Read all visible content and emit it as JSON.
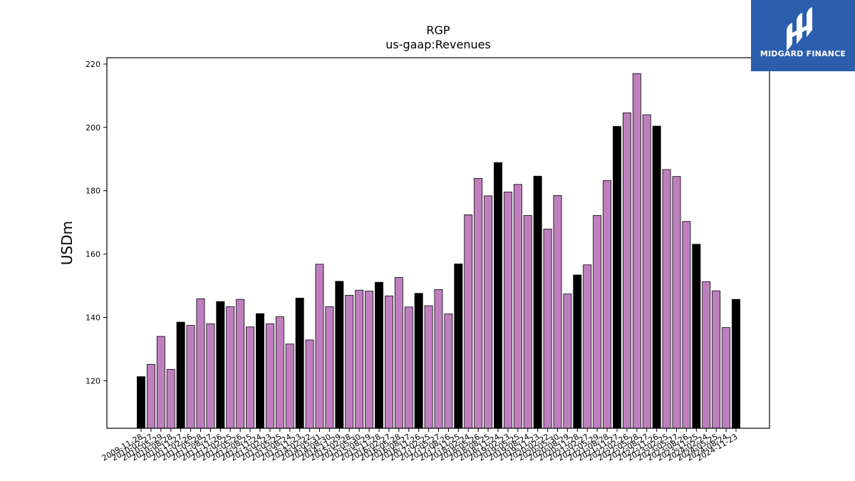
{
  "logo": {
    "text": "MIDGARD FINANCE"
  },
  "chart_data": {
    "type": "bar",
    "title": "RGP",
    "subtitle": "us-gaap:Revenues",
    "xlabel": "",
    "ylabel": "USDm",
    "ylim": [
      105,
      222
    ],
    "yticks": [
      120,
      140,
      160,
      180,
      200,
      220
    ],
    "grid": false,
    "legend": "none",
    "colors": {
      "annual": "#000000",
      "quarterly": "#bf7fbf"
    },
    "categories": [
      "2009-11-28",
      "2010-02-27",
      "2010-05-29",
      "2010-08-28",
      "2010-11-27",
      "2011-02-26",
      "2011-05-28",
      "2011-08-27",
      "2011-11-26",
      "2012-02-25",
      "2012-05-26",
      "2012-08-25",
      "2012-11-24",
      "2013-02-23",
      "2013-05-25",
      "2013-08-24",
      "2013-11-23",
      "2014-02-22",
      "2014-05-31",
      "2014-08-30",
      "2014-11-29",
      "2015-02-28",
      "2015-05-30",
      "2015-08-29",
      "2015-11-28",
      "2016-02-27",
      "2016-05-28",
      "2016-08-27",
      "2016-11-26",
      "2017-02-25",
      "2017-05-27",
      "2017-08-26",
      "2017-11-25",
      "2018-02-24",
      "2018-05-26",
      "2018-08-25",
      "2018-11-24",
      "2019-02-23",
      "2019-05-25",
      "2019-08-24",
      "2019-11-23",
      "2020-02-22",
      "2020-05-30",
      "2020-08-29",
      "2020-11-28",
      "2021-02-27",
      "2021-05-29",
      "2021-08-28",
      "2021-11-27",
      "2022-02-26",
      "2022-05-28",
      "2022-08-27",
      "2022-11-26",
      "2023-02-25",
      "2023-05-27",
      "2023-08-26",
      "2023-11-25",
      "2024-02-24",
      "2024-05-25",
      "2024-08-24",
      "2024-11-23"
    ],
    "tick_labels": [
      "2009-11-28",
      "2010-02-27",
      "2010-05-29",
      "2010-08-28",
      "2010-11-27",
      "2011-02-26",
      "2011-05-28",
      "2011-08-27",
      "2011-11-26",
      "2012-02-25",
      "2012-05-26",
      "2012-08-25",
      "2012-11-24",
      "2013-02-23",
      "2013-05-25",
      "2013-08-24",
      "2013-11-23",
      "2014-02-22",
      "2014-05-31",
      "2014-08-30",
      "2014-11-29",
      "2015-02-28",
      "2015-05-30",
      "2015-08-29",
      "2015-11-28",
      "2016-02-27",
      "2016-05-28",
      "2016-08-27",
      "2016-11-26",
      "2017-02-25",
      "2017-05-27",
      "2017-08-26",
      "2017-11-25",
      "2018-02-24",
      "2018-05-26",
      "2018-08-25",
      "2018-11-24",
      "2019-02-23",
      "2019-05-25",
      "2019-08-24",
      "2019-11-23",
      "2020-02-22",
      "2020-05-30",
      "2020-08-29",
      "2020-11-28",
      "2021-02-27",
      "2021-05-29",
      "2021-08-28",
      "2021-11-27",
      "2022-02-26",
      "2022-05-28",
      "2022-08-27",
      "2022-11-26",
      "2023-02-25",
      "2023-05-27",
      "2023-08-26",
      "2023-11-25",
      "2024-02-24",
      "2024-05-25",
      "2024-08-24",
      "2024-11-23"
    ],
    "values": [
      121.3,
      125.2,
      134.0,
      123.6,
      138.5,
      137.5,
      145.9,
      138.0,
      145.0,
      143.4,
      145.7,
      137.0,
      141.2,
      138.0,
      140.2,
      131.6,
      146.1,
      132.9,
      156.8,
      143.4,
      151.4,
      147.0,
      148.6,
      148.3,
      151.1,
      146.8,
      152.6,
      143.3,
      147.6,
      143.7,
      148.8,
      141.1,
      156.9,
      172.4,
      183.9,
      178.4,
      188.9,
      179.6,
      182.0,
      172.2,
      184.6,
      167.9,
      178.5,
      147.4,
      153.4,
      156.6,
      172.2,
      183.2,
      200.3,
      204.6,
      217.0,
      204.0,
      200.4,
      186.7,
      184.5,
      170.3,
      163.1,
      151.3,
      148.4,
      136.8,
      145.7
    ],
    "bar_kind": [
      "annual",
      "quarterly",
      "quarterly",
      "quarterly",
      "annual",
      "quarterly",
      "quarterly",
      "quarterly",
      "annual",
      "quarterly",
      "quarterly",
      "quarterly",
      "annual",
      "quarterly",
      "quarterly",
      "quarterly",
      "annual",
      "quarterly",
      "quarterly",
      "quarterly",
      "annual",
      "quarterly",
      "quarterly",
      "quarterly",
      "annual",
      "quarterly",
      "quarterly",
      "quarterly",
      "annual",
      "quarterly",
      "quarterly",
      "quarterly",
      "annual",
      "quarterly",
      "quarterly",
      "quarterly",
      "annual",
      "quarterly",
      "quarterly",
      "quarterly",
      "annual",
      "quarterly",
      "quarterly",
      "quarterly",
      "annual",
      "quarterly",
      "quarterly",
      "quarterly",
      "annual",
      "quarterly",
      "quarterly",
      "quarterly",
      "annual",
      "quarterly",
      "quarterly",
      "quarterly",
      "annual",
      "quarterly",
      "quarterly",
      "quarterly",
      "annual"
    ]
  }
}
